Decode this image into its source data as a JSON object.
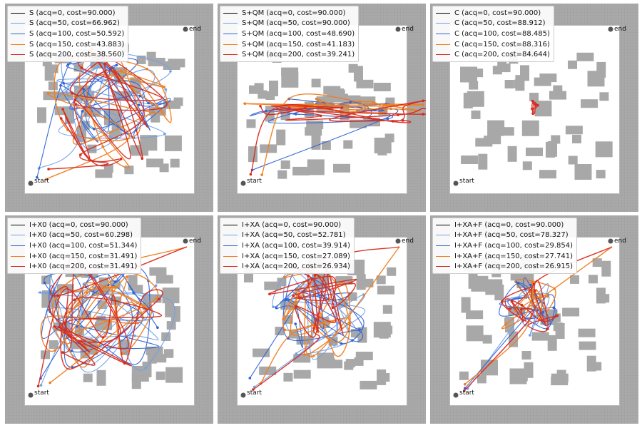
{
  "chart_data": [
    {
      "type": "line",
      "panel": "S",
      "start_label": "start",
      "end_label": "end",
      "series": [
        {
          "name": "S (acq=0, cost=90.000)",
          "color": "#000000"
        },
        {
          "name": "S (acq=50, cost=66.962)",
          "color": "#6fa0e8"
        },
        {
          "name": "S (acq=100, cost=50.592)",
          "color": "#2f62d4"
        },
        {
          "name": "S (acq=150, cost=43.883)",
          "color": "#f07d1f"
        },
        {
          "name": "S (acq=200, cost=38.560)",
          "color": "#d62a1e"
        }
      ]
    },
    {
      "type": "line",
      "panel": "S+QM",
      "start_label": "start",
      "end_label": "end",
      "series": [
        {
          "name": "S+QM (acq=0, cost=90.000)",
          "color": "#000000"
        },
        {
          "name": "S+QM (acq=50, cost=90.000)",
          "color": "#6fa0e8"
        },
        {
          "name": "S+QM (acq=100, cost=48.690)",
          "color": "#2f62d4"
        },
        {
          "name": "S+QM (acq=150, cost=41.183)",
          "color": "#f07d1f"
        },
        {
          "name": "S+QM (acq=200, cost=39.241)",
          "color": "#d62a1e"
        }
      ]
    },
    {
      "type": "line",
      "panel": "C",
      "start_label": "start",
      "end_label": "end",
      "series": [
        {
          "name": "C (acq=0, cost=90.000)",
          "color": "#000000"
        },
        {
          "name": "C (acq=50, cost=88.912)",
          "color": "#6fa0e8"
        },
        {
          "name": "C (acq=100, cost=88.485)",
          "color": "#2f62d4"
        },
        {
          "name": "C (acq=150, cost=88.316)",
          "color": "#f07d1f"
        },
        {
          "name": "C (acq=200, cost=84.644)",
          "color": "#d62a1e"
        }
      ]
    },
    {
      "type": "line",
      "panel": "I+X0",
      "start_label": "start",
      "end_label": "end",
      "series": [
        {
          "name": "I+X0 (acq=0, cost=90.000)",
          "color": "#000000"
        },
        {
          "name": "I+X0 (acq=50, cost=60.298)",
          "color": "#6fa0e8"
        },
        {
          "name": "I+X0 (acq=100, cost=51.344)",
          "color": "#2f62d4"
        },
        {
          "name": "I+X0 (acq=150, cost=31.491)",
          "color": "#f07d1f"
        },
        {
          "name": "I+X0 (acq=200, cost=31.491)",
          "color": "#d62a1e"
        }
      ]
    },
    {
      "type": "line",
      "panel": "I+XA",
      "start_label": "start",
      "end_label": "end",
      "series": [
        {
          "name": "I+XA (acq=0, cost=90.000)",
          "color": "#000000"
        },
        {
          "name": "I+XA (acq=50, cost=52.781)",
          "color": "#6fa0e8"
        },
        {
          "name": "I+XA (acq=100, cost=39.914)",
          "color": "#2f62d4"
        },
        {
          "name": "I+XA (acq=150, cost=27.089)",
          "color": "#f07d1f"
        },
        {
          "name": "I+XA (acq=200, cost=26.934)",
          "color": "#d62a1e"
        }
      ]
    },
    {
      "type": "line",
      "panel": "I+XA+F",
      "start_label": "start",
      "end_label": "end",
      "series": [
        {
          "name": "I+XA+F (acq=0, cost=90.000)",
          "color": "#000000"
        },
        {
          "name": "I+XA+F (acq=50, cost=78.327)",
          "color": "#6fa0e8"
        },
        {
          "name": "I+XA+F (acq=100, cost=29.854)",
          "color": "#2f62d4"
        },
        {
          "name": "I+XA+F (acq=150, cost=27.741)",
          "color": "#f07d1f"
        },
        {
          "name": "I+XA+F (acq=200, cost=26.915)",
          "color": "#d62a1e"
        }
      ]
    }
  ]
}
